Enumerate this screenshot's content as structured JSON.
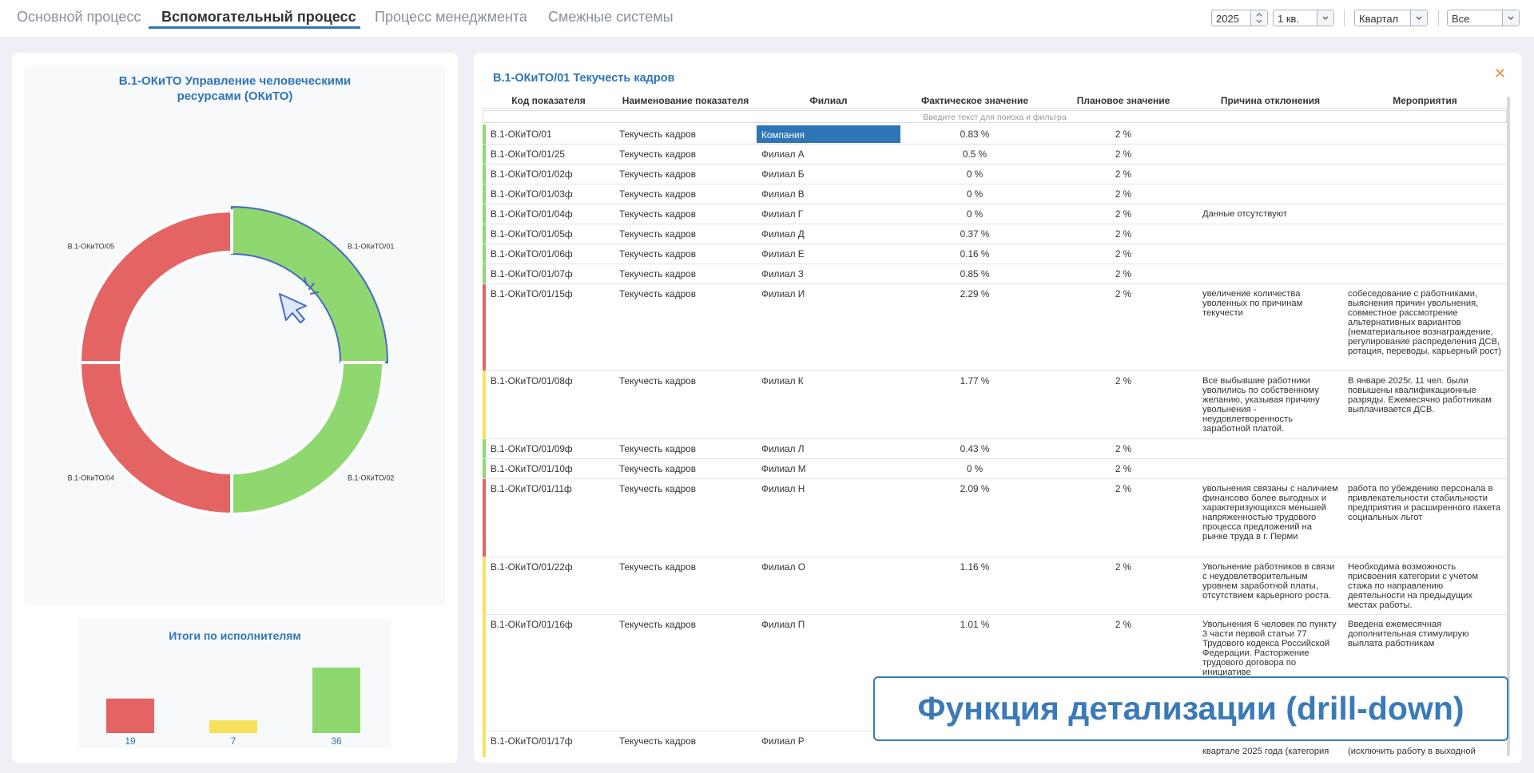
{
  "tabs": [
    "Основной процесс",
    "Вспомогательный процесс",
    "Процесс менеджмента",
    "Смежные системы"
  ],
  "filters": {
    "year": "2025",
    "quarter": "1 кв.",
    "period": "Квартал",
    "scope": "Все"
  },
  "donut": {
    "title": "В.1-ОКиТО Управление человеческими ресурсами (ОКиТО)",
    "segments": [
      {
        "label": "В.1-ОКиТО/01",
        "value": 25,
        "color": "#8fd86f"
      },
      {
        "label": "В.1-ОКиТО/02",
        "value": 25,
        "color": "#8fd86f"
      },
      {
        "label": "В.1-ОКиТО/04",
        "value": 25,
        "color": "#e46464"
      },
      {
        "label": "В.1-ОКиТО/05",
        "value": 25,
        "color": "#e46464"
      }
    ]
  },
  "bars": {
    "title": "Итоги по исполнителям",
    "values": [
      19,
      7,
      36
    ],
    "colors": [
      "#e46464",
      "#f7e05a",
      "#8fd86f"
    ]
  },
  "table": {
    "title": "В.1-ОКиТО/01 Текучесть кадров",
    "columns": [
      "Код показателя",
      "Наименование показателя",
      "Филиал",
      "Фактическое значение",
      "Плановое значение",
      "Причина отклонения",
      "Мероприятия"
    ],
    "filter_placeholder": "Введите текст для поиска и фильтра",
    "rows": [
      {
        "color": "#8fd86f",
        "cells": [
          "В.1-ОКиТО/01",
          "Текучесть кадров",
          "Компания",
          "0.83 %",
          "2 %",
          null,
          null
        ]
      },
      {
        "color": "#8fd86f",
        "cells": [
          "В.1-ОКиТО/01/25",
          "Текучесть кадров",
          "Филиал А",
          "0.5 %",
          "2 %",
          null,
          null
        ]
      },
      {
        "color": "#8fd86f",
        "cells": [
          "В.1-ОКиТО/01/02ф",
          "Текучесть кадров",
          "Филиал Б",
          "0 %",
          "2 %",
          null,
          null
        ]
      },
      {
        "color": "#8fd86f",
        "cells": [
          "В.1-ОКиТО/01/03ф",
          "Текучесть кадров",
          "Филиал В",
          "0 %",
          "2 %",
          null,
          null
        ]
      },
      {
        "color": "#8fd86f",
        "cells": [
          "В.1-ОКиТО/01/04ф",
          "Текучесть кадров",
          "Филиал Г",
          "0 %",
          "2 %",
          "Данные отсутствуют",
          null
        ]
      },
      {
        "color": "#8fd86f",
        "cells": [
          "В.1-ОКиТО/01/05ф",
          "Текучесть кадров",
          "Филиал Д",
          "0.37 %",
          "2 %",
          null,
          null
        ]
      },
      {
        "color": "#8fd86f",
        "cells": [
          "В.1-ОКиТО/01/06ф",
          "Текучесть кадров",
          "Филиал Е",
          "0.16 %",
          "2 %",
          null,
          null
        ]
      },
      {
        "color": "#8fd86f",
        "cells": [
          "В.1-ОКиТО/01/07ф",
          "Текучесть кадров",
          "Филиал З",
          "0.85 %",
          "2 %",
          null,
          null
        ]
      },
      {
        "color": "#e46464",
        "cells": [
          "В.1-ОКиТО/01/15ф",
          "Текучесть кадров",
          "Филиал И",
          "2.29 %",
          "2 %",
          "увеличение количества уволенных по причинам текучести",
          "собеседование с работниками, выяснения причин увольнения, совместное рассмотрение альтернативных вариантов (нематериальное вознаграждение, регулирование распределения ДСВ, ротация, переводы, карьерный рост)"
        ]
      },
      {
        "color": "#f7e05a",
        "cells": [
          "В.1-ОКиТО/01/08ф",
          "Текучесть кадров",
          "Филиал К",
          "1.77 %",
          "2 %",
          "Все выбывшие работники уволились по собственному желанию, указывая причину увольнения - неудовлетворенность заработной платой.",
          "В январе 2025г. 11 чел. были повышены квалификационные разряды. Ежемесячно работникам выплачивается ДСВ."
        ]
      },
      {
        "color": "#8fd86f",
        "cells": [
          "В.1-ОКиТО/01/09ф",
          "Текучесть кадров",
          "Филиал Л",
          "0.43 %",
          "2 %",
          null,
          null
        ]
      },
      {
        "color": "#8fd86f",
        "cells": [
          "В.1-ОКиТО/01/10ф",
          "Текучесть кадров",
          "Филиал М",
          "0 %",
          "2 %",
          null,
          null
        ]
      },
      {
        "color": "#e46464",
        "cells": [
          "В.1-ОКиТО/01/11ф",
          "Текучесть кадров",
          "Филиал Н",
          "2.09 %",
          "2 %",
          "увольнения связаны с наличием финансово более выгодных и характеризующихся меньшей напряженностью трудового процесса предложений на рынке труда в г. Перми",
          "работа по убеждению персонала в привлекательности стабильности предприятия и расширенного пакета социальных льгот"
        ]
      },
      {
        "color": "#f7e05a",
        "cells": [
          "В.1-ОКиТО/01/22ф",
          "Текучесть кадров",
          "Филиал О",
          "1.16 %",
          "2 %",
          "Увольнение работников в связи с неудовлетворительным уровнем заработной платы, отсутствием карьерного роста.",
          "Необходима возможность присвоения категории с учетом стажа по направлению деятельности на предыдущих местах работы."
        ]
      },
      {
        "color": "#f7e05a",
        "cells": [
          "В.1-ОКиТО/01/16ф",
          "Текучесть кадров",
          "Филиал П",
          "1.01 %",
          "2 %",
          "Увольнения 6 человек по пункту 3 части первой статьи 77 Трудового кодекса Российской Федерации. Расторжение трудового договора по инициативе",
          "Введена ежемесячная дополнительная стимулирую выплата работникам"
        ]
      },
      {
        "color": "#f7e05a",
        "cells": [
          "В.1-ОКиТО/01/17ф",
          "Текучесть кадров",
          "Филиал Р",
          null,
          null,
          "квартале  2025 года (категория",
          "(исключить работу в выходной"
        ]
      }
    ]
  },
  "callout": "Функция детализации (drill-down)"
}
